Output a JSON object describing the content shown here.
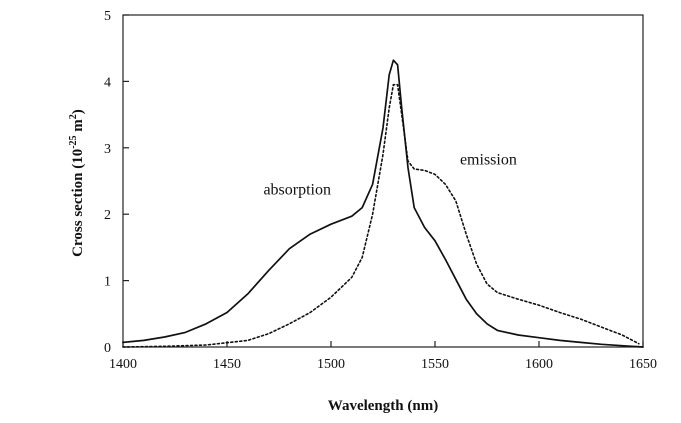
{
  "chart_data": {
    "type": "line",
    "xlabel": "Wavelength (nm)",
    "ylabel": {
      "prefix": "Cross section (10",
      "exponent1": "-25",
      "middle": " m",
      "exponent2": "2",
      "suffix": ")"
    },
    "xlim": [
      1400,
      1650
    ],
    "ylim": [
      0,
      5
    ],
    "x_ticks": [
      1400,
      1450,
      1500,
      1550,
      1600,
      1650
    ],
    "y_ticks": [
      0,
      1,
      2,
      3,
      4,
      5
    ],
    "grid": false,
    "series": [
      {
        "name": "absorption",
        "style": "solid",
        "color": "#111111",
        "points": [
          [
            1400,
            0.07
          ],
          [
            1410,
            0.1
          ],
          [
            1420,
            0.15
          ],
          [
            1430,
            0.22
          ],
          [
            1440,
            0.35
          ],
          [
            1450,
            0.52
          ],
          [
            1460,
            0.8
          ],
          [
            1470,
            1.15
          ],
          [
            1480,
            1.48
          ],
          [
            1490,
            1.7
          ],
          [
            1500,
            1.85
          ],
          [
            1510,
            1.97
          ],
          [
            1515,
            2.1
          ],
          [
            1520,
            2.45
          ],
          [
            1525,
            3.3
          ],
          [
            1528,
            4.1
          ],
          [
            1530,
            4.32
          ],
          [
            1532,
            4.25
          ],
          [
            1534,
            3.6
          ],
          [
            1537,
            2.7
          ],
          [
            1540,
            2.1
          ],
          [
            1545,
            1.8
          ],
          [
            1550,
            1.6
          ],
          [
            1555,
            1.32
          ],
          [
            1560,
            1.02
          ],
          [
            1565,
            0.72
          ],
          [
            1570,
            0.5
          ],
          [
            1575,
            0.35
          ],
          [
            1580,
            0.25
          ],
          [
            1590,
            0.18
          ],
          [
            1600,
            0.14
          ],
          [
            1610,
            0.1
          ],
          [
            1620,
            0.07
          ],
          [
            1630,
            0.04
          ],
          [
            1640,
            0.02
          ],
          [
            1650,
            0.0
          ]
        ]
      },
      {
        "name": "emission",
        "style": "dotted",
        "color": "#111111",
        "points": [
          [
            1400,
            0.0
          ],
          [
            1420,
            0.01
          ],
          [
            1440,
            0.03
          ],
          [
            1460,
            0.1
          ],
          [
            1470,
            0.2
          ],
          [
            1480,
            0.35
          ],
          [
            1490,
            0.52
          ],
          [
            1500,
            0.75
          ],
          [
            1510,
            1.05
          ],
          [
            1515,
            1.35
          ],
          [
            1520,
            2.0
          ],
          [
            1525,
            2.9
          ],
          [
            1528,
            3.6
          ],
          [
            1530,
            3.95
          ],
          [
            1532,
            3.95
          ],
          [
            1534,
            3.5
          ],
          [
            1537,
            2.8
          ],
          [
            1540,
            2.68
          ],
          [
            1545,
            2.66
          ],
          [
            1550,
            2.6
          ],
          [
            1555,
            2.45
          ],
          [
            1560,
            2.2
          ],
          [
            1565,
            1.7
          ],
          [
            1570,
            1.25
          ],
          [
            1575,
            0.95
          ],
          [
            1580,
            0.82
          ],
          [
            1590,
            0.72
          ],
          [
            1600,
            0.63
          ],
          [
            1610,
            0.52
          ],
          [
            1620,
            0.42
          ],
          [
            1630,
            0.3
          ],
          [
            1640,
            0.18
          ],
          [
            1648,
            0.05
          ]
        ]
      }
    ],
    "annotations": [
      {
        "text": "absorption",
        "x": 1500,
        "y": 2.3
      },
      {
        "text": "emission",
        "x": 1562,
        "y": 2.75
      }
    ]
  }
}
